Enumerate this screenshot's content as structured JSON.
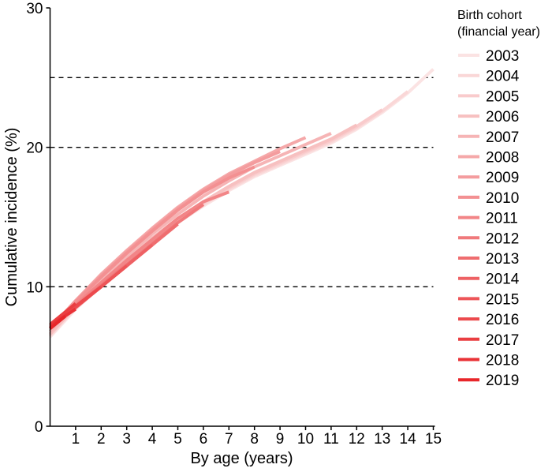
{
  "chart_data": {
    "type": "line",
    "xlabel": "By age (years)",
    "ylabel": "Cumulative incidence (%)",
    "xlim": [
      0,
      15
    ],
    "ylim": [
      0,
      30
    ],
    "xticks": [
      1,
      2,
      3,
      4,
      5,
      6,
      7,
      8,
      9,
      10,
      11,
      12,
      13,
      14,
      15
    ],
    "yticks": [
      0,
      10,
      20,
      30
    ],
    "reference_lines_y": [
      10,
      20,
      25
    ],
    "grid": false,
    "legend": {
      "title_line1": "Birth cohort",
      "title_line2": "(financial year)",
      "placement": "right"
    },
    "color_light": "#fbe3e3",
    "color_dark": "#e8262a",
    "series": [
      {
        "name": "2003",
        "x": [
          0,
          1,
          2,
          3,
          4,
          5,
          6,
          7,
          8,
          9,
          10,
          11,
          12,
          13,
          14,
          15
        ],
        "y": [
          6.4,
          8.4,
          10.1,
          11.7,
          13.2,
          14.6,
          15.8,
          16.9,
          17.9,
          18.7,
          19.5,
          20.3,
          21.3,
          22.5,
          23.9,
          25.6
        ]
      },
      {
        "name": "2004",
        "x": [
          0,
          1,
          2,
          3,
          4,
          5,
          6,
          7,
          8,
          9,
          10,
          11,
          12,
          13,
          14
        ],
        "y": [
          6.5,
          8.5,
          10.2,
          11.8,
          13.3,
          14.7,
          15.9,
          17.0,
          18.0,
          18.8,
          19.6,
          20.4,
          21.4,
          22.6,
          24.0
        ]
      },
      {
        "name": "2005",
        "x": [
          0,
          1,
          2,
          3,
          4,
          5,
          6,
          7,
          8,
          9,
          10,
          11,
          12,
          13
        ],
        "y": [
          6.6,
          8.6,
          10.3,
          11.9,
          13.4,
          14.8,
          16.0,
          17.1,
          18.1,
          18.9,
          19.7,
          20.5,
          21.5,
          22.7
        ]
      },
      {
        "name": "2006",
        "x": [
          0,
          1,
          2,
          3,
          4,
          5,
          6,
          7,
          8,
          9,
          10,
          11,
          12
        ],
        "y": [
          6.6,
          8.6,
          10.4,
          12.0,
          13.5,
          14.9,
          16.1,
          17.2,
          18.2,
          19.0,
          19.8,
          20.6,
          21.6
        ]
      },
      {
        "name": "2007",
        "x": [
          0,
          1,
          2,
          3,
          4,
          5,
          6,
          7,
          8,
          9,
          10,
          11
        ],
        "y": [
          6.8,
          8.8,
          10.5,
          12.2,
          13.8,
          15.2,
          16.5,
          17.6,
          18.6,
          19.4,
          20.2,
          21.0
        ]
      },
      {
        "name": "2008",
        "x": [
          0,
          1,
          2,
          3,
          4,
          5,
          6,
          7,
          8,
          9,
          10
        ],
        "y": [
          7.0,
          9.0,
          10.9,
          12.6,
          14.2,
          15.7,
          17.0,
          18.1,
          19.0,
          19.9,
          20.7
        ]
      },
      {
        "name": "2009",
        "x": [
          0,
          1,
          2,
          3,
          4,
          5,
          6,
          7,
          8,
          9
        ],
        "y": [
          7.0,
          9.0,
          10.8,
          12.5,
          14.1,
          15.6,
          16.9,
          18.0,
          18.9,
          19.7
        ]
      },
      {
        "name": "2010",
        "x": [
          0,
          1,
          2,
          3,
          4,
          5,
          6,
          7,
          8
        ],
        "y": [
          7.0,
          8.9,
          10.7,
          12.4,
          14.0,
          15.5,
          16.8,
          17.8,
          18.6
        ]
      },
      {
        "name": "2011",
        "x": [
          0,
          1,
          2,
          3,
          4,
          5,
          6,
          7
        ],
        "y": [
          7.0,
          8.7,
          10.3,
          11.9,
          13.4,
          14.9,
          16.1,
          16.8
        ]
      },
      {
        "name": "2012",
        "x": [
          0,
          1,
          2,
          3,
          4,
          5,
          6
        ],
        "y": [
          7.0,
          8.6,
          10.1,
          11.6,
          13.1,
          14.6,
          15.9
        ]
      },
      {
        "name": "2013",
        "x": [
          0,
          1,
          2,
          3,
          4,
          5
        ],
        "y": [
          7.1,
          8.6,
          10.0,
          11.5,
          13.0,
          14.5
        ]
      },
      {
        "name": "2014",
        "x": [
          0,
          1,
          2,
          3,
          4
        ],
        "y": [
          7.1,
          8.6,
          10.0,
          11.5,
          13.0
        ]
      },
      {
        "name": "2015",
        "x": [
          0,
          1,
          2,
          3
        ],
        "y": [
          7.1,
          8.5,
          10.0,
          11.5
        ]
      },
      {
        "name": "2016",
        "x": [
          0,
          1,
          2
        ],
        "y": [
          7.2,
          8.6,
          10.0
        ]
      },
      {
        "name": "2017",
        "x": [
          0,
          1
        ],
        "y": [
          7.3,
          8.8
        ]
      },
      {
        "name": "2018",
        "x": [
          0,
          1
        ],
        "y": [
          7.2,
          8.4
        ]
      },
      {
        "name": "2019",
        "x": [
          0,
          0.6
        ],
        "y": [
          7.0,
          7.9
        ]
      }
    ]
  }
}
